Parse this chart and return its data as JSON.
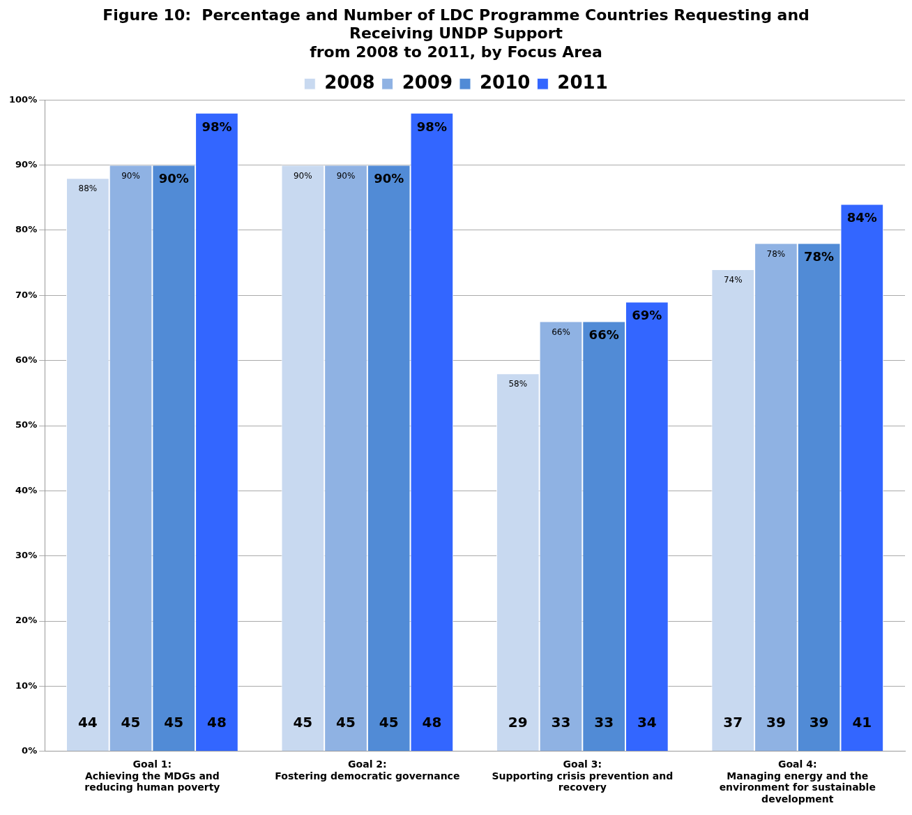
{
  "chart_data": {
    "type": "bar",
    "title": "Figure 10:  Percentage and Number of LDC Programme Countries Requesting and\nReceiving UNDP Support\nfrom 2008 to 2011, by Focus Area",
    "categories": [
      "Goal 1:\nAchieving the MDGs and\nreducing human poverty",
      "Goal 2:\nFostering democratic governance",
      "Goal 3:\nSupporting crisis prevention and\nrecovery",
      "Goal 4:\nManaging energy and the\nenvironment for sustainable\ndevelopment"
    ],
    "series": [
      {
        "name": "2008",
        "color": "#c8d9f0",
        "values": [
          88,
          90,
          58,
          74
        ],
        "value_labels": [
          "88%",
          "90%",
          "58%",
          "74%"
        ]
      },
      {
        "name": "2009",
        "color": "#8fb2e3",
        "values": [
          90,
          90,
          66,
          78
        ],
        "value_labels": [
          "90%",
          "90%",
          "66%",
          "78%"
        ]
      },
      {
        "name": "2010",
        "color": "#518bd6",
        "values": [
          90,
          90,
          66,
          78
        ],
        "value_labels": [
          "90%",
          "90%",
          "66%",
          "78%"
        ]
      },
      {
        "name": "2011",
        "color": "#3366ff",
        "values": [
          98,
          98,
          69,
          84
        ],
        "value_labels": [
          "98%",
          "98%",
          "69%",
          "84%"
        ]
      }
    ],
    "ylim": [
      0,
      100
    ],
    "yticks": [
      {
        "value": 0,
        "label": "0%"
      },
      {
        "value": 10,
        "label": "10%"
      },
      {
        "value": 20,
        "label": "20%"
      },
      {
        "value": 30,
        "label": "30%"
      },
      {
        "value": 40,
        "label": "40%"
      },
      {
        "value": 50,
        "label": "50%"
      },
      {
        "value": 60,
        "label": "60%"
      },
      {
        "value": 70,
        "label": "70%"
      },
      {
        "value": 80,
        "label": "80%"
      },
      {
        "value": 90,
        "label": "90%"
      },
      {
        "value": 100,
        "label": "100%"
      }
    ],
    "grid": "y",
    "legend": "top",
    "annotations": [
      "44",
      "45",
      "45",
      "48",
      "45",
      "45",
      "45",
      "48",
      "29",
      "33",
      "33",
      "34",
      "37",
      "39",
      "39",
      "41"
    ]
  }
}
